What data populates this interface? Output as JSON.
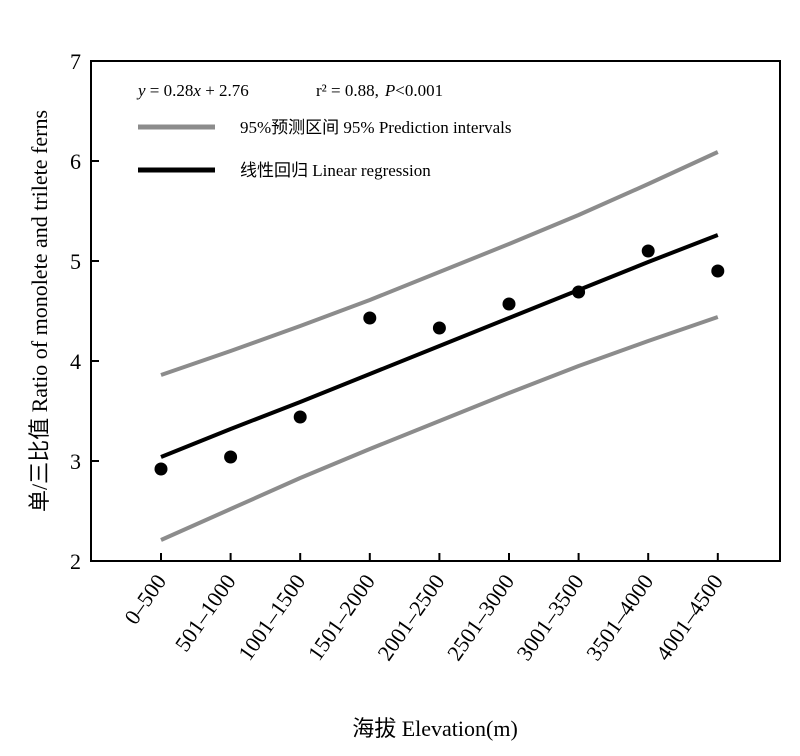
{
  "chart_data": {
    "type": "scatter",
    "title": "",
    "xlabel": "海拔  Elevation(m)",
    "ylabel": "单/三比值  Ratio of monolete and trilete ferns",
    "ylim": [
      2,
      7
    ],
    "yticks": [
      2,
      3,
      4,
      5,
      6,
      7
    ],
    "categories": [
      "0–500",
      "501–1000",
      "1001–1500",
      "1501–2000",
      "2001–2500",
      "2501–3000",
      "3001–3500",
      "3501–4000",
      "4001–4500"
    ],
    "series": [
      {
        "kind": "points",
        "values": [
          2.92,
          3.04,
          3.44,
          4.43,
          4.33,
          4.57,
          4.69,
          5.1,
          4.9
        ],
        "color": "#000000"
      },
      {
        "name": "线性回归  Linear regression",
        "kind": "line",
        "values": [
          3.04,
          3.32,
          3.59,
          3.87,
          4.15,
          4.43,
          4.71,
          4.99,
          5.26
        ],
        "color": "#000000"
      },
      {
        "name": "95%预测区间  95% Prediction intervals",
        "kind": "band-upper",
        "values": [
          3.86,
          4.1,
          4.35,
          4.61,
          4.89,
          5.17,
          5.46,
          5.77,
          6.09
        ],
        "color": "#8c8c8c"
      },
      {
        "kind": "band-lower",
        "values": [
          2.21,
          2.52,
          2.83,
          3.12,
          3.4,
          3.68,
          3.95,
          4.2,
          4.44
        ],
        "color": "#8c8c8c"
      }
    ],
    "legend_position": "top-left",
    "annotation": {
      "y_var": "y",
      "eq_rest": " = 0.28",
      "x_var": "x",
      "eq_tail": " + 2.76",
      "r2": "r² = 0.88,",
      "p_var": "P",
      "p_rest": "<0.001"
    },
    "grid": false
  }
}
